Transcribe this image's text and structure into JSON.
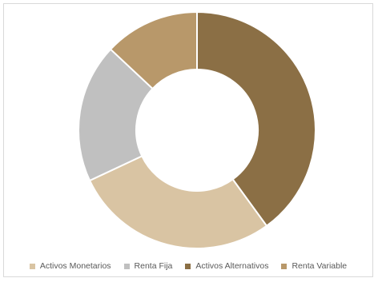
{
  "chart_data": {
    "type": "pie",
    "donut": true,
    "title": "",
    "categories": [
      "Activos Monetarios",
      "Renta Fija",
      "Activos Alternativos",
      "Renta Variable"
    ],
    "values": [
      28,
      19,
      40,
      13
    ],
    "slice_order_clockwise_from_top": [
      "Activos Alternativos",
      "Activos Monetarios",
      "Renta Fija",
      "Renta Variable"
    ],
    "colors": {
      "Activos Monetarios": "#d9c4a3",
      "Renta Fija": "#c0c0c0",
      "Activos Alternativos": "#8b6f45",
      "Renta Variable": "#b8986a"
    },
    "legend_position": "bottom",
    "slice_border_color": "#ffffff"
  }
}
